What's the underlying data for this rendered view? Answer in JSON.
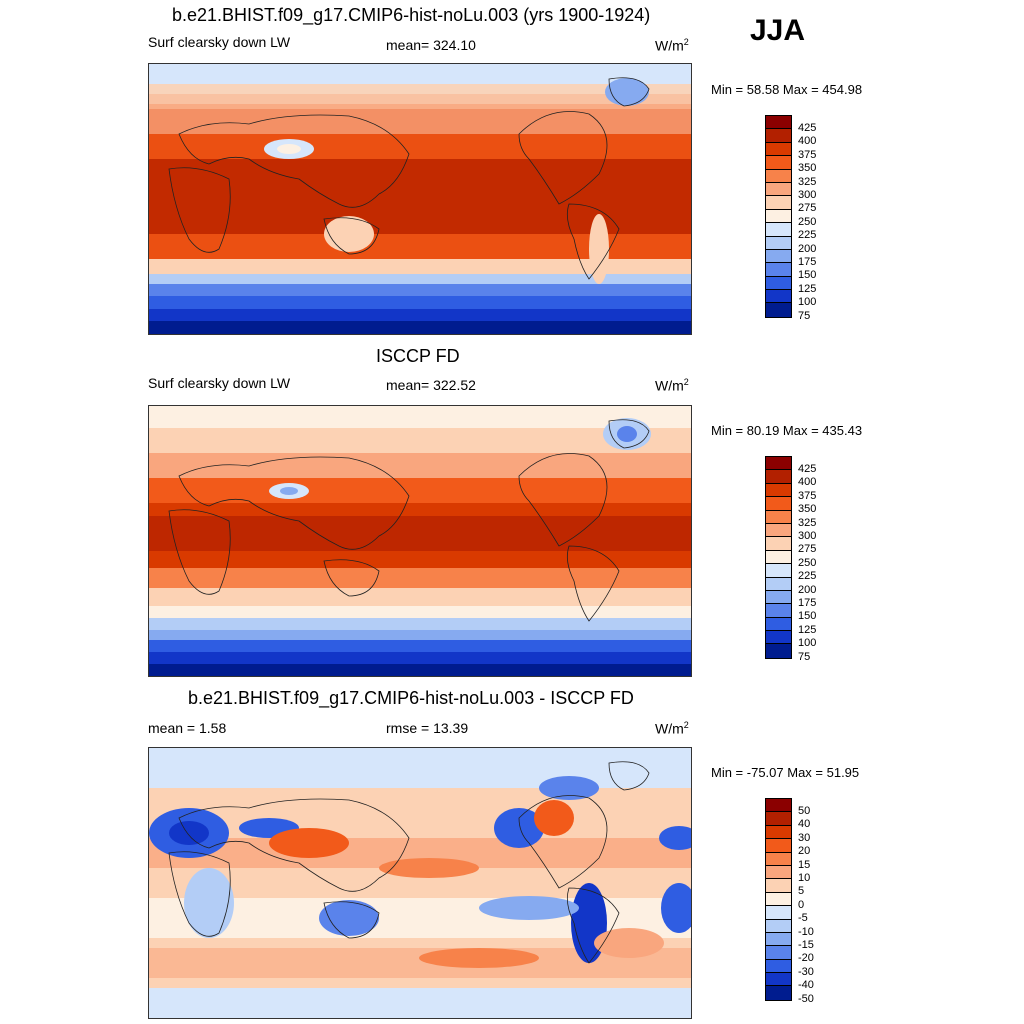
{
  "season": "JJA",
  "panels": [
    {
      "title": "b.e21.BHIST.f09_g17.CMIP6-hist-noLu.003 (yrs 1900-1924)",
      "left_label": "Surf clearsky down LW",
      "center_label": "mean= 324.10",
      "units": "W/m",
      "units_sup": "2",
      "minmax": "Min =  58.58 Max = 454.98",
      "levels": [
        "425",
        "400",
        "375",
        "350",
        "325",
        "300",
        "275",
        "250",
        "225",
        "200",
        "175",
        "150",
        "125",
        "100",
        "75"
      ]
    },
    {
      "title": "ISCCP FD",
      "left_label": "Surf clearsky down LW",
      "center_label": "mean= 322.52",
      "units": "W/m",
      "units_sup": "2",
      "minmax": "Min =  80.19 Max = 435.43",
      "levels": [
        "425",
        "400",
        "375",
        "350",
        "325",
        "300",
        "275",
        "250",
        "225",
        "200",
        "175",
        "150",
        "125",
        "100",
        "75"
      ]
    },
    {
      "title": "b.e21.BHIST.f09_g17.CMIP6-hist-noLu.003 - ISCCP FD",
      "left_label": "mean =   1.58",
      "center_label": "rmse =  13.39",
      "units": "W/m",
      "units_sup": "2",
      "minmax": "Min = -75.07 Max =  51.95",
      "levels": [
        "50",
        "40",
        "30",
        "20",
        "15",
        "10",
        "5",
        "0",
        "-5",
        "-10",
        "-15",
        "-20",
        "-30",
        "-40",
        "-50"
      ]
    }
  ],
  "colors": {
    "bar": [
      "#8b0000",
      "#b22000",
      "#d93a00",
      "#f25a1a",
      "#f7824a",
      "#f9a67e",
      "#fcd2b4",
      "#fdf0e2",
      "#d6e6fb",
      "#b3cdf6",
      "#86aaf0",
      "#5a83eb",
      "#2f5de2",
      "#1236c8",
      "#001c8f"
    ]
  }
}
